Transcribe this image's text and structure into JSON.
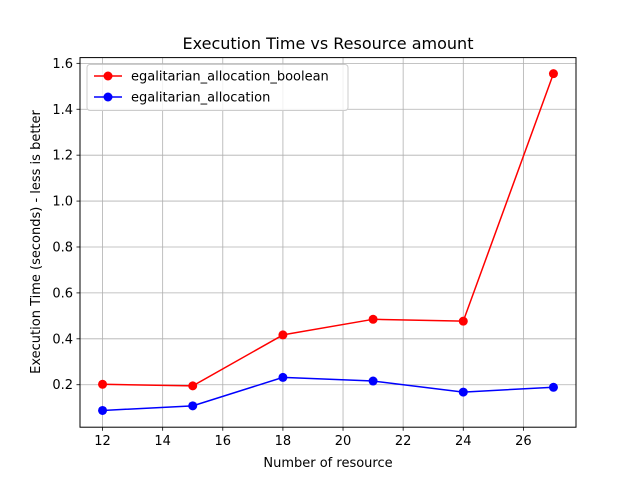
{
  "chart_data": {
    "type": "line",
    "title": "Execution Time vs Resource amount",
    "xlabel": "Number of resource",
    "ylabel": "Execution Time (seconds) - less is better",
    "x": [
      12,
      15,
      18,
      21,
      24,
      27
    ],
    "xlim": [
      11.25,
      27.75
    ],
    "ylim": [
      0.015,
      1.625
    ],
    "x_ticks": [
      12,
      14,
      16,
      18,
      20,
      22,
      24,
      26
    ],
    "y_ticks": [
      0.2,
      0.4,
      0.6,
      0.8,
      1.0,
      1.2,
      1.4,
      1.6
    ],
    "y_tick_labels": [
      "0.2",
      "0.4",
      "0.6",
      "0.8",
      "1.0",
      "1.2",
      "1.4",
      "1.6"
    ],
    "grid": true,
    "legend_position": "top-left",
    "series": [
      {
        "name": "egalitarian_allocation_boolean",
        "color": "#ff0000",
        "marker": "circle",
        "values": [
          0.202,
          0.195,
          0.417,
          0.485,
          0.477,
          1.555
        ]
      },
      {
        "name": "egalitarian_allocation",
        "color": "#0000ff",
        "marker": "circle",
        "values": [
          0.088,
          0.108,
          0.232,
          0.216,
          0.168,
          0.189
        ]
      }
    ]
  }
}
